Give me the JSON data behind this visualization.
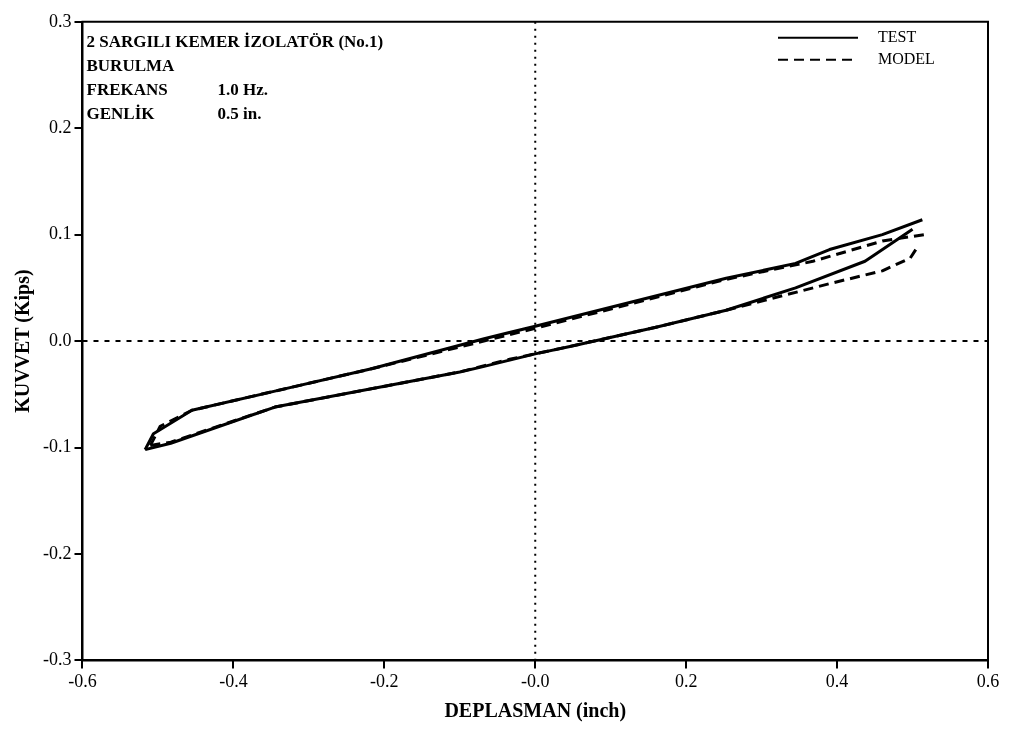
{
  "chart_data": {
    "type": "line",
    "xlabel": "DEPLASMAN (inch)",
    "ylabel": "KUVVET (Kips)",
    "annotations": [
      "2 SARGILI KEMER İZOLATÖR (No.1)",
      "BURULMA",
      "FREKANS",
      "1.0 Hz.",
      "GENLİK",
      "0.5 in."
    ],
    "xlim": [
      -0.6,
      0.6
    ],
    "xticks": [
      -0.6,
      -0.4,
      -0.2,
      {
        "value": 0,
        "label": "-0.0"
      },
      0.2,
      0.4,
      0.6
    ],
    "ylim": [
      -0.3,
      0.3
    ],
    "yticks": [
      -0.3,
      -0.2,
      -0.1,
      {
        "value": 0,
        "label": "0.0"
      },
      0.1,
      0.2,
      0.3
    ],
    "grid": false,
    "legend": "top right",
    "marker": "none",
    "ref_lines": [
      {
        "axis": "x",
        "value": 0,
        "line_style": "dotted",
        "color": "#000000"
      },
      {
        "axis": "y",
        "value": 0,
        "line_style": "dashed",
        "color": "#000000"
      }
    ],
    "series": [
      {
        "name": "TEST",
        "color": "#000000",
        "line_style": "solid",
        "x": [
          -0.517,
          -0.506,
          -0.455,
          -0.345,
          -0.217,
          -0.069,
          0,
          0.253,
          0.345,
          0.39,
          0.46,
          0.513
        ],
        "values": [
          -0.102,
          -0.087,
          -0.065,
          -0.047,
          -0.026,
          0.002,
          0.014,
          0.059,
          0.073,
          0.086,
          0.1,
          0.114
        ]
      },
      {
        "color": "#000000",
        "line_style": "solid",
        "x": [
          -0.517,
          -0.483,
          -0.345,
          -0.1,
          -0.069,
          0,
          0.046,
          0.16,
          0.253,
          0.345,
          0.437,
          0.5
        ],
        "values": [
          -0.102,
          -0.096,
          -0.062,
          -0.029,
          -0.024,
          -0.012,
          -0.005,
          0.013,
          0.029,
          0.05,
          0.075,
          0.105
        ]
      },
      {
        "name": "MODEL",
        "color": "#000000",
        "line_style": "dashed",
        "x": [
          -0.51,
          -0.483,
          -0.345,
          -0.1,
          -0.04,
          0.046,
          0.16,
          0.253,
          0.39,
          0.46,
          0.497,
          0.508
        ],
        "values": [
          -0.098,
          -0.095,
          -0.062,
          -0.029,
          -0.018,
          -0.005,
          0.013,
          0.029,
          0.054,
          0.066,
          0.078,
          0.09
        ]
      },
      {
        "color": "#000000",
        "line_style": "dashed",
        "x": [
          -0.51,
          -0.497,
          -0.455,
          -0.217,
          -0.04,
          0,
          0.253,
          0.368,
          0.46,
          0.515
        ],
        "values": [
          -0.098,
          -0.08,
          -0.065,
          -0.026,
          0.005,
          0.012,
          0.058,
          0.075,
          0.094,
          0.1
        ]
      }
    ]
  }
}
